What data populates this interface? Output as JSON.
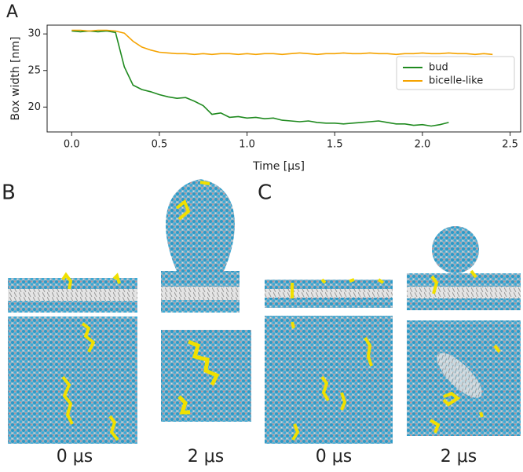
{
  "chart_data": {
    "type": "line",
    "panel": "A",
    "x_label": "Time [μs]",
    "y_label": "Box width [nm]",
    "x": [
      0,
      0.05,
      0.1,
      0.15,
      0.2,
      0.25,
      0.3,
      0.35,
      0.4,
      0.45,
      0.5,
      0.55,
      0.6,
      0.65,
      0.7,
      0.75,
      0.8,
      0.85,
      0.9,
      0.95,
      1.0,
      1.05,
      1.1,
      1.15,
      1.2,
      1.25,
      1.3,
      1.35,
      1.4,
      1.45,
      1.5,
      1.55,
      1.6,
      1.65,
      1.7,
      1.75,
      1.8,
      1.85,
      1.9,
      1.95,
      2.0,
      2.05,
      2.1,
      2.15,
      2.2,
      2.25,
      2.3,
      2.35,
      2.4
    ],
    "series": [
      {
        "name": "bud",
        "color": "#1f8a1f",
        "values": [
          30.4,
          30.3,
          30.4,
          30.3,
          30.4,
          30.2,
          25.5,
          23.0,
          22.4,
          22.1,
          21.7,
          21.4,
          21.2,
          21.3,
          20.8,
          20.2,
          19.0,
          19.2,
          18.6,
          18.7,
          18.5,
          18.6,
          18.4,
          18.5,
          18.2,
          18.1,
          18.0,
          18.1,
          17.9,
          17.8,
          17.8,
          17.7,
          17.8,
          17.9,
          18.0,
          18.1,
          17.9,
          17.7,
          17.7,
          17.5,
          17.6,
          17.4,
          17.6,
          17.9,
          null,
          null,
          null,
          null,
          null
        ]
      },
      {
        "name": "bicelle-like",
        "color": "#f5a300",
        "values": [
          30.5,
          30.5,
          30.4,
          30.5,
          30.5,
          30.4,
          30.1,
          29.0,
          28.2,
          27.8,
          27.5,
          27.4,
          27.3,
          27.3,
          27.2,
          27.3,
          27.2,
          27.3,
          27.3,
          27.2,
          27.3,
          27.2,
          27.3,
          27.3,
          27.2,
          27.3,
          27.4,
          27.3,
          27.2,
          27.3,
          27.3,
          27.4,
          27.3,
          27.3,
          27.4,
          27.3,
          27.3,
          27.2,
          27.3,
          27.3,
          27.4,
          27.3,
          27.3,
          27.4,
          27.3,
          27.3,
          27.2,
          27.3,
          27.2
        ]
      }
    ],
    "xlim": [
      -0.14,
      2.56
    ],
    "ylim": [
      16.6,
      31.2
    ],
    "xticks": [
      {
        "value": 0,
        "label": "0.0"
      },
      0.5,
      {
        "value": 1,
        "label": "1.0"
      },
      1.5,
      {
        "value": 2,
        "label": "2.0"
      },
      2.5
    ],
    "yticks": [
      20,
      25,
      30
    ],
    "legend": "upper-right",
    "grid": false
  },
  "panels": {
    "b_label": "B",
    "c_label": "C",
    "b_times": [
      "0 μs",
      "2 μs"
    ],
    "c_times": [
      "0 μs",
      "2 μs"
    ]
  }
}
